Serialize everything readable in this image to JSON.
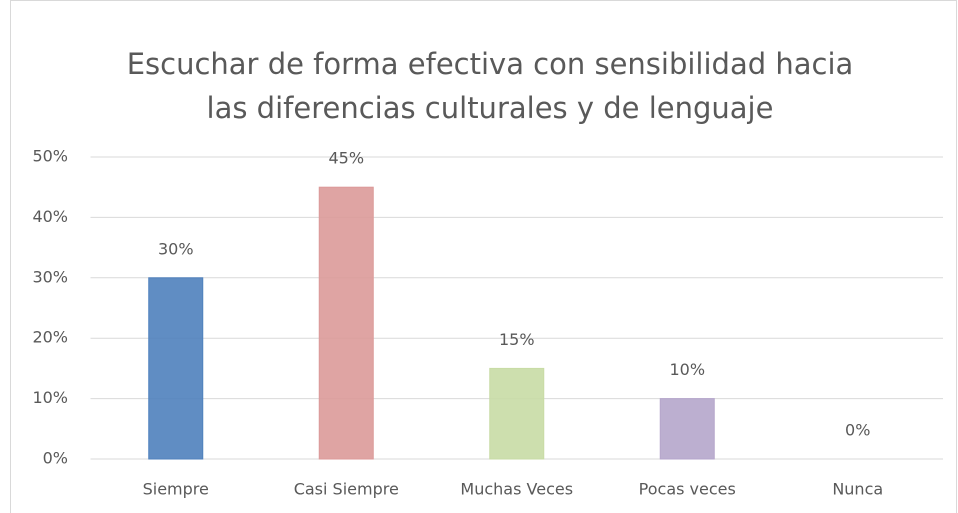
{
  "chart_data": {
    "type": "bar",
    "title": [
      "Escuchar de forma efectiva con sensibilidad hacia",
      "las diferencias culturales y de lenguaje"
    ],
    "categories": [
      "Siempre",
      "Casi Siempre",
      "Muchas Veces",
      "Pocas veces",
      "Nunca"
    ],
    "values": [
      30,
      45,
      15,
      10,
      0
    ],
    "value_labels": [
      "30%",
      "45%",
      "15%",
      "10%",
      "0%"
    ],
    "colors": [
      "#4f81bd",
      "#dc9a99",
      "#c8dba5",
      "#b5a6cb",
      "#f79646"
    ],
    "ylim": [
      0,
      50
    ],
    "yticks": [
      {
        "value": 0,
        "label": "0%"
      },
      {
        "value": 10,
        "label": "10%"
      },
      {
        "value": 20,
        "label": "20%"
      },
      {
        "value": 30,
        "label": "30%"
      },
      {
        "value": 40,
        "label": "40%"
      },
      {
        "value": 50,
        "label": "50%"
      }
    ],
    "grid": true
  }
}
